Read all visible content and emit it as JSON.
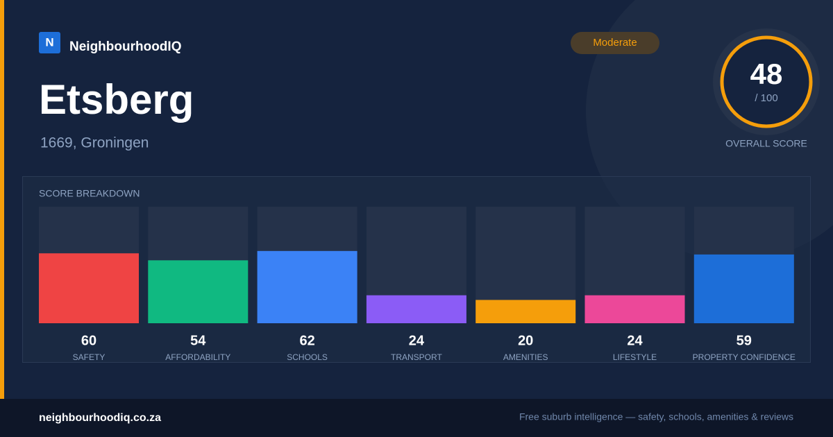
{
  "brand": {
    "logo": "N",
    "name": "NeighbourhoodIQ"
  },
  "badge": "Moderate",
  "title": "Etsberg",
  "subtitle": "1669, Groningen",
  "score": {
    "value": 48,
    "max_label": "/ 100",
    "label": "OVERALL SCORE"
  },
  "chart_data": {
    "type": "bar",
    "title": "SCORE BREAKDOWN",
    "categories": [
      "SAFETY",
      "AFFORDABILITY",
      "SCHOOLS",
      "TRANSPORT",
      "AMENITIES",
      "LIFESTYLE",
      "PROPERTY CONFIDENCE"
    ],
    "values": [
      60,
      54,
      62,
      24,
      20,
      24,
      59
    ],
    "colors": [
      "#ef4444",
      "#10b981",
      "#3b82f6",
      "#8b5cf6",
      "#f59e0b",
      "#ec4899",
      "#1d6ed8"
    ],
    "ylim": [
      0,
      100
    ]
  },
  "footer": {
    "site": "neighbourhoodiq.co.za",
    "tagline": "Free suburb intelligence — safety, schools, amenities & reviews"
  }
}
